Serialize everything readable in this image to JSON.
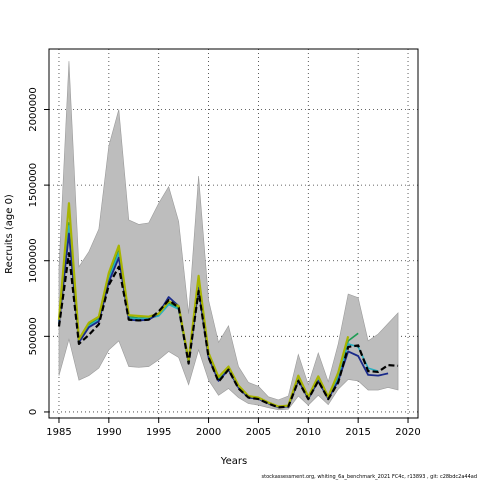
{
  "chart_data": {
    "type": "line",
    "xlabel": "Years",
    "ylabel": "Recruits (age 0)",
    "xlim": [
      1984,
      2021
    ],
    "ylim": [
      -40000,
      2400000
    ],
    "x_ticks": [
      1985,
      1990,
      1995,
      2000,
      2005,
      2010,
      2015,
      2020
    ],
    "y_ticks": [
      0,
      500000,
      1000000,
      1500000,
      2000000
    ],
    "grid": true,
    "footer": "stockassessment.org, whiting_6a_benchmark_2021 FC4c, r13893 , git: c28bdc2a44ad",
    "band": {
      "x": [
        1985,
        1986,
        1987,
        1988,
        1989,
        1990,
        1991,
        1992,
        1993,
        1994,
        1995,
        1996,
        1997,
        1998,
        1999,
        2000,
        2001,
        2002,
        2003,
        2004,
        2005,
        2006,
        2007,
        2008,
        2009,
        2010,
        2011,
        2012,
        2013,
        2014,
        2015,
        2016,
        2017,
        2018,
        2019
      ],
      "lower": [
        240000,
        480000,
        210000,
        240000,
        290000,
        410000,
        470000,
        300000,
        295000,
        300000,
        345000,
        400000,
        360000,
        180000,
        410000,
        210000,
        110000,
        155000,
        95000,
        55000,
        45000,
        28000,
        14000,
        18000,
        105000,
        45000,
        110000,
        48000,
        150000,
        215000,
        205000,
        145000,
        145000,
        162000,
        145000
      ],
      "upper": [
        950000,
        2320000,
        960000,
        1060000,
        1210000,
        1760000,
        2000000,
        1270000,
        1240000,
        1250000,
        1380000,
        1490000,
        1260000,
        650000,
        1560000,
        740000,
        460000,
        570000,
        300000,
        195000,
        170000,
        100000,
        80000,
        105000,
        380000,
        180000,
        390000,
        200000,
        450000,
        780000,
        755000,
        470000,
        515000,
        585000,
        655000
      ]
    },
    "series": [
      {
        "color": "#000000",
        "dash": "6,3",
        "width": 2.2,
        "x": [
          1985,
          1986,
          1987,
          1988,
          1989,
          1990,
          1991,
          1992,
          1993,
          1994,
          1995,
          1996,
          1997,
          1998,
          1999,
          2000,
          2001,
          2002,
          2003,
          2004,
          2005,
          2006,
          2007,
          2008,
          2009,
          2010,
          2011,
          2012,
          2013,
          2014,
          2015,
          2016,
          2017,
          2018,
          2019
        ],
        "values": [
          565000,
          1050000,
          450000,
          510000,
          580000,
          840000,
          960000,
          610000,
          605000,
          610000,
          665000,
          740000,
          690000,
          320000,
          800000,
          360000,
          200000,
          280000,
          155000,
          95000,
          85000,
          55000,
          30000,
          35000,
          205000,
          85000,
          205000,
          85000,
          195000,
          430000,
          440000,
          270000,
          265000,
          310000,
          305000
        ]
      },
      {
        "color": "#1f9d55",
        "width": 1.6,
        "x": [
          1985,
          1986,
          1987,
          1988,
          1989,
          1990,
          1991,
          1992,
          1993,
          1994,
          1995,
          1996,
          1997,
          1998,
          1999,
          2000,
          2001,
          2002,
          2003,
          2004,
          2005,
          2006,
          2007,
          2008,
          2009,
          2010,
          2011,
          2012,
          2013,
          2014,
          2015
        ],
        "values": [
          600000,
          1250000,
          470000,
          580000,
          620000,
          900000,
          1080000,
          630000,
          620000,
          625000,
          640000,
          720000,
          690000,
          330000,
          870000,
          380000,
          220000,
          290000,
          170000,
          100000,
          90000,
          60000,
          35000,
          40000,
          225000,
          95000,
          220000,
          95000,
          240000,
          470000,
          520000
        ]
      },
      {
        "color": "#2ab0c0",
        "width": 1.6,
        "x": [
          1985,
          1986,
          1987,
          1988,
          1989,
          1990,
          1991,
          1992,
          1993,
          1994,
          1995,
          1996,
          1997,
          1998,
          1999,
          2000,
          2001,
          2002,
          2003,
          2004,
          2005,
          2006,
          2007,
          2008,
          2009,
          2010,
          2011,
          2012,
          2013,
          2014,
          2015,
          2016,
          2017
        ],
        "values": [
          590000,
          1230000,
          470000,
          570000,
          610000,
          880000,
          1050000,
          620000,
          615000,
          620000,
          635000,
          710000,
          680000,
          320000,
          850000,
          370000,
          210000,
          285000,
          165000,
          95000,
          88000,
          58000,
          32000,
          38000,
          215000,
          90000,
          210000,
          90000,
          220000,
          450000,
          430000,
          290000,
          270000
        ]
      },
      {
        "color": "#1a2a8a",
        "width": 1.8,
        "x": [
          1985,
          1986,
          1987,
          1988,
          1989,
          1990,
          1991,
          1992,
          1993,
          1994,
          1995,
          1996,
          1997,
          1998,
          1999,
          2000,
          2001,
          2002,
          2003,
          2004,
          2005,
          2006,
          2007,
          2008,
          2009,
          2010,
          2011,
          2012,
          2013,
          2014,
          2015,
          2016,
          2017,
          2018
        ],
        "values": [
          580000,
          1180000,
          460000,
          560000,
          600000,
          860000,
          1020000,
          610000,
          605000,
          610000,
          650000,
          760000,
          700000,
          330000,
          820000,
          360000,
          205000,
          280000,
          160000,
          95000,
          86000,
          56000,
          31000,
          36000,
          210000,
          88000,
          205000,
          88000,
          205000,
          400000,
          370000,
          245000,
          240000,
          255000
        ]
      },
      {
        "color": "#a8b400",
        "width": 2.2,
        "x": [
          1985,
          1986,
          1987,
          1988,
          1989,
          1990,
          1991,
          1992,
          1993,
          1994,
          1995,
          1996,
          1997,
          1998,
          1999,
          2000,
          2001,
          2002,
          2003,
          2004,
          2005,
          2006,
          2007,
          2008,
          2009,
          2010,
          2011,
          2012,
          2013,
          2014
        ],
        "values": [
          610000,
          1380000,
          480000,
          590000,
          630000,
          920000,
          1100000,
          640000,
          635000,
          630000,
          650000,
          730000,
          700000,
          340000,
          900000,
          390000,
          230000,
          300000,
          175000,
          105000,
          95000,
          62000,
          36000,
          42000,
          240000,
          100000,
          235000,
          100000,
          260000,
          500000
        ]
      }
    ]
  }
}
